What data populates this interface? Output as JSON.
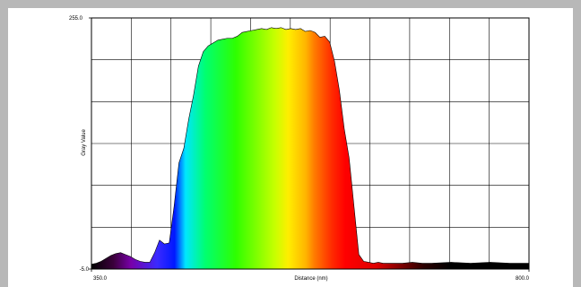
{
  "chart_data": {
    "type": "area",
    "title": "",
    "xlabel": "Distance (nm)",
    "ylabel": "Gray Value",
    "xlim": [
      350.0,
      800.0
    ],
    "ylim": [
      -5.0,
      255.0
    ],
    "x_tick_labels": [
      "350.0",
      "800.0"
    ],
    "y_tick_labels": [
      "255.0",
      "-5.0"
    ],
    "grid": true,
    "fill": "visible-spectrum gradient",
    "series": [
      {
        "x": [
          350,
          355,
          360,
          365,
          370,
          375,
          380,
          385,
          390,
          395,
          400,
          405,
          410,
          415,
          420,
          425,
          430,
          435,
          440,
          445,
          450,
          455,
          460,
          465,
          470,
          475,
          480,
          485,
          490,
          495,
          500,
          505,
          510,
          515,
          520,
          525,
          530,
          535,
          540,
          545,
          550,
          555,
          560,
          565,
          570,
          575,
          580,
          585,
          590,
          595,
          600,
          605,
          610,
          615,
          620,
          625,
          630,
          635,
          640,
          645,
          650,
          660,
          670,
          680,
          690,
          700,
          720,
          740,
          760,
          780,
          800
        ],
        "y": [
          0,
          1,
          3,
          6,
          9,
          11,
          12,
          10,
          8,
          5,
          3,
          2,
          2,
          12,
          25,
          21,
          22,
          60,
          105,
          120,
          150,
          175,
          205,
          220,
          226,
          229,
          232,
          233,
          234,
          234,
          236,
          240,
          241,
          242,
          243,
          244,
          243,
          245,
          244,
          245,
          243,
          244,
          243,
          244,
          241,
          242,
          240,
          235,
          236,
          230,
          210,
          180,
          140,
          110,
          60,
          10,
          3,
          2,
          1,
          2,
          1,
          1,
          1,
          2,
          1,
          1,
          2,
          1,
          2,
          1,
          1
        ]
      }
    ],
    "colors": {
      "violet": "#7800a8",
      "blue": "#0018ff",
      "cyan": "#00e6ff",
      "green": "#2eff00",
      "yellow": "#ffee00",
      "orange": "#ff7a00",
      "red": "#ff0000",
      "dark_red": "#7a0000",
      "black": "#000000"
    }
  }
}
